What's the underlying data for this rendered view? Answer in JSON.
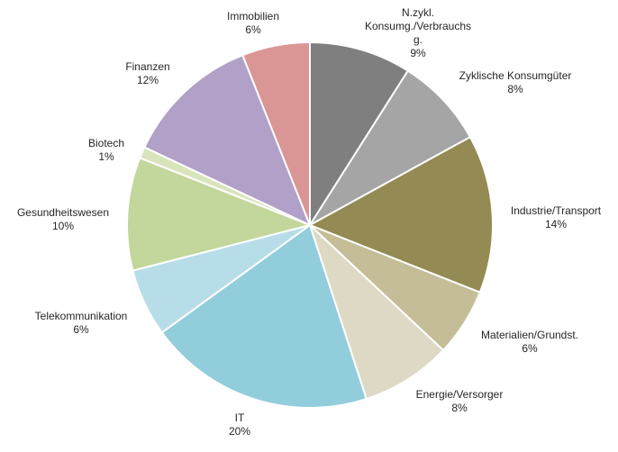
{
  "chart_data": {
    "type": "pie",
    "start_angle_deg": 0,
    "direction": "clockwise",
    "slices": [
      {
        "label": [
          "N.zykl.",
          "Konsumg./Verbrauchs",
          "g."
        ],
        "value": 9,
        "value_label": "9%",
        "color": "#7F7F7F"
      },
      {
        "label": [
          "Zyklische Konsumgüter"
        ],
        "value": 8,
        "value_label": "8%",
        "color": "#A5A5A5"
      },
      {
        "label": [
          "Industrie/Transport"
        ],
        "value": 14,
        "value_label": "14%",
        "color": "#948A54"
      },
      {
        "label": [
          "Materialien/Grundst."
        ],
        "value": 6,
        "value_label": "6%",
        "color": "#C4BD97"
      },
      {
        "label": [
          "Energie/Versorger"
        ],
        "value": 8,
        "value_label": "8%",
        "color": "#DDD9C4"
      },
      {
        "label": [
          "IT"
        ],
        "value": 20,
        "value_label": "20%",
        "color": "#92CDDC"
      },
      {
        "label": [
          "Telekommunikation"
        ],
        "value": 6,
        "value_label": "6%",
        "color": "#B7DDE8"
      },
      {
        "label": [
          "Gesundheitswesen"
        ],
        "value": 10,
        "value_label": "10%",
        "color": "#C3D69B"
      },
      {
        "label": [
          "Biotech"
        ],
        "value": 1,
        "value_label": "1%",
        "color": "#D8E4BC"
      },
      {
        "label": [
          "Finanzen"
        ],
        "value": 12,
        "value_label": "12%",
        "color": "#B1A0C7"
      },
      {
        "label": [
          "Immobilien"
        ],
        "value": 6,
        "value_label": "6%",
        "color": "#DA9694"
      }
    ]
  }
}
